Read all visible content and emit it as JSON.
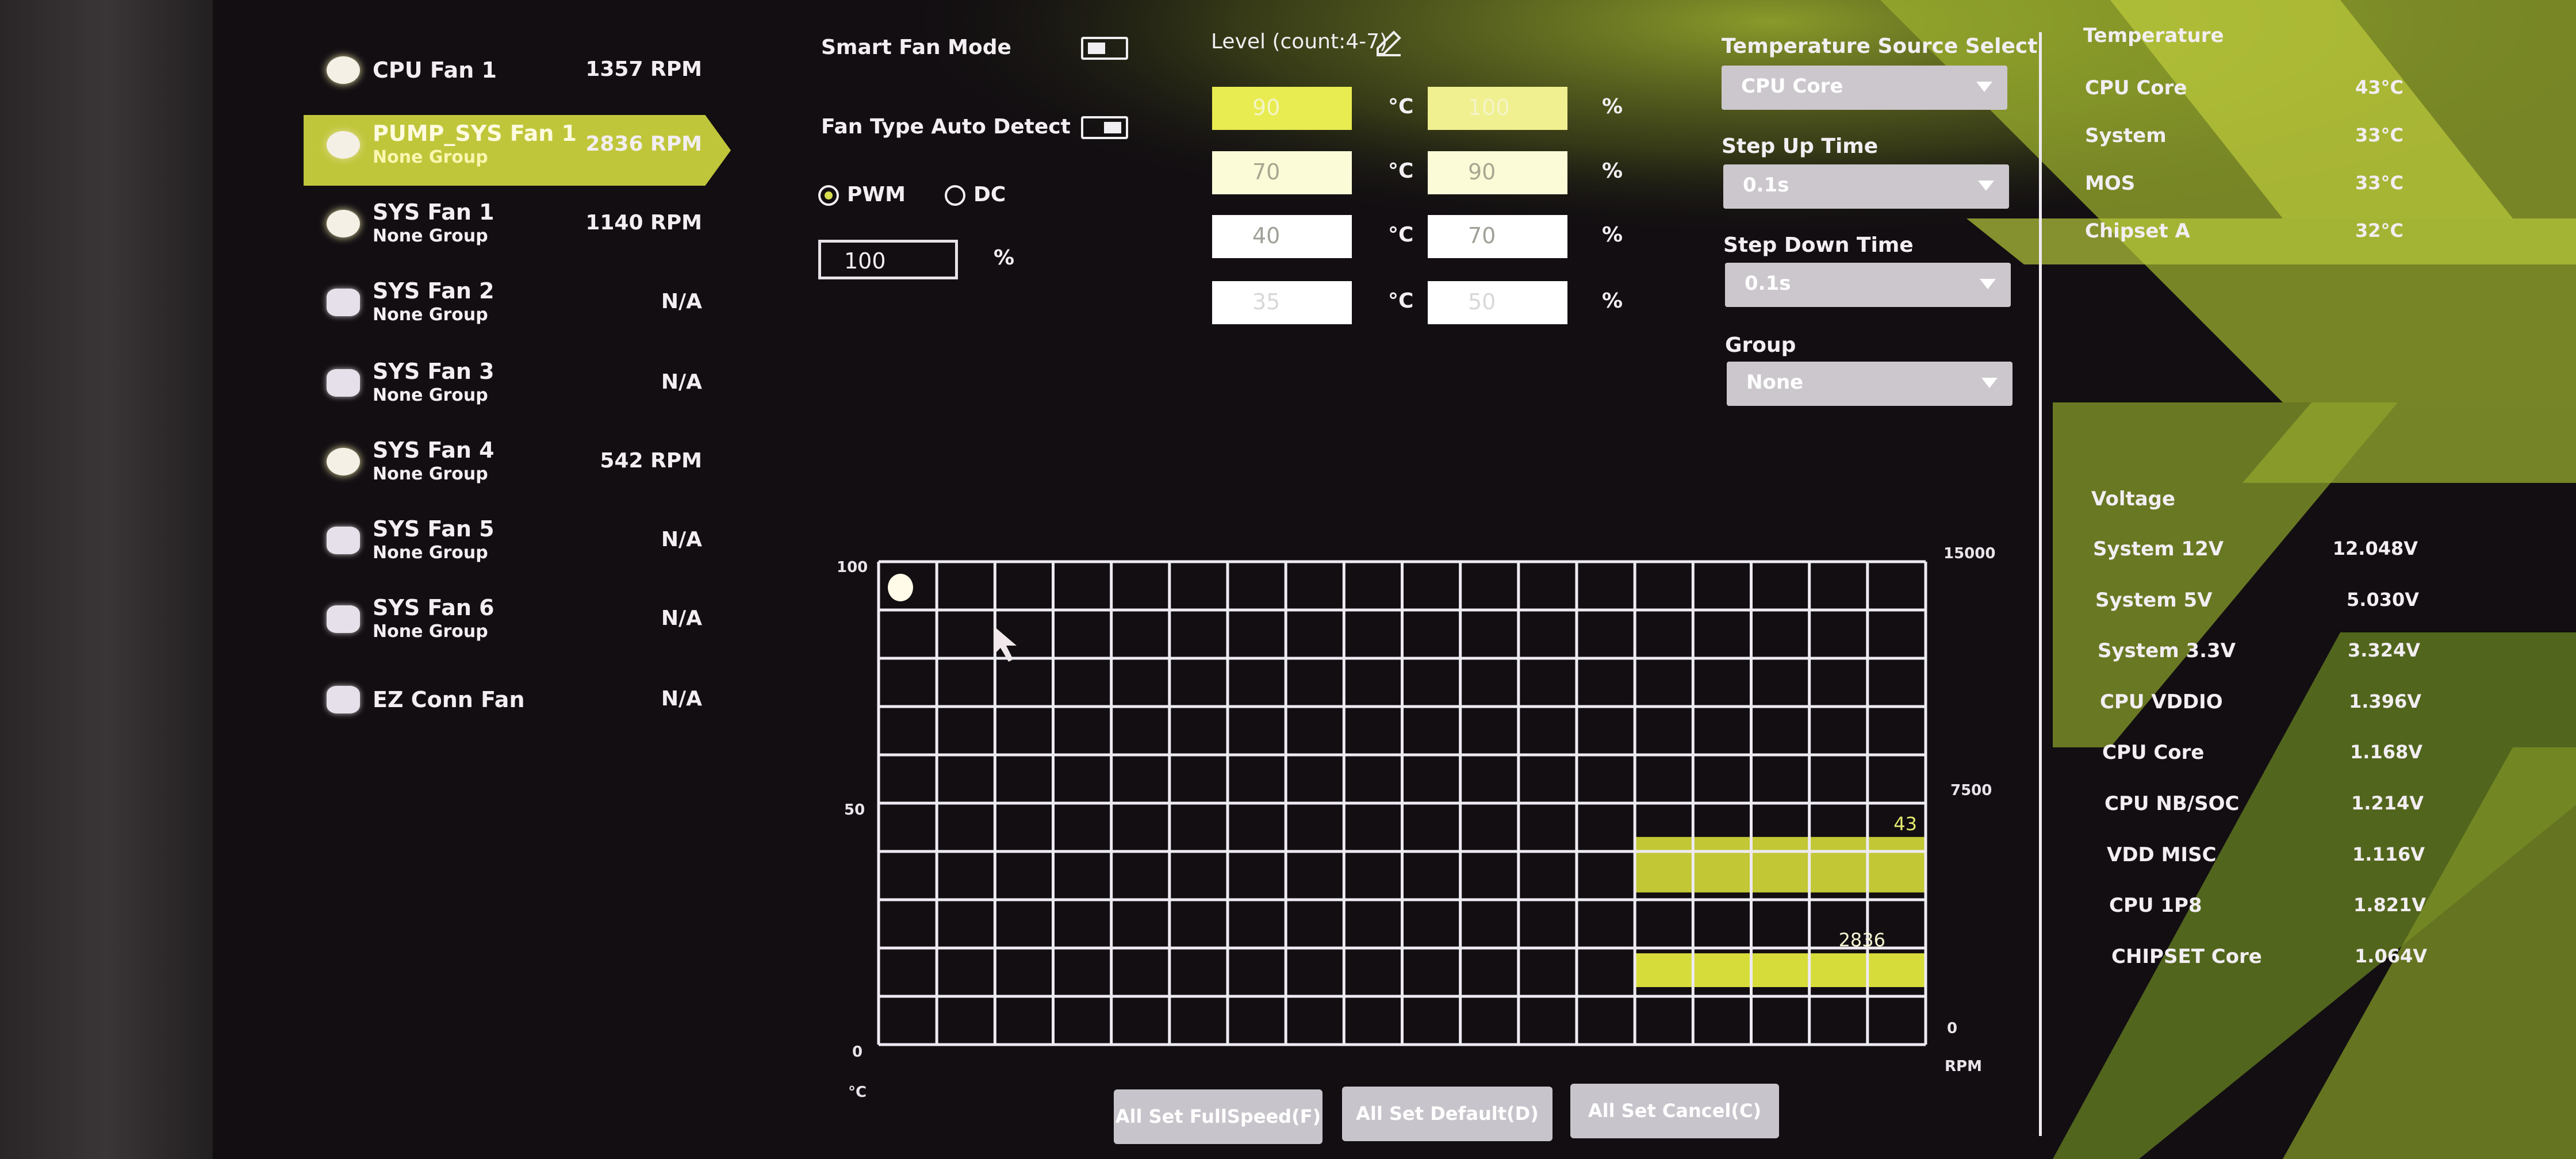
{
  "fans": [
    {
      "name": "CPU Fan 1",
      "group": "",
      "rpm": "1357 RPM",
      "active": true,
      "selected": false
    },
    {
      "name": "PUMP_SYS Fan 1",
      "group": "None Group",
      "rpm": "2836 RPM",
      "active": true,
      "selected": true
    },
    {
      "name": "SYS Fan 1",
      "group": "None Group",
      "rpm": "1140 RPM",
      "active": true,
      "selected": false
    },
    {
      "name": "SYS Fan 2",
      "group": "None Group",
      "rpm": "N/A",
      "active": false,
      "selected": false
    },
    {
      "name": "SYS Fan 3",
      "group": "None Group",
      "rpm": "N/A",
      "active": false,
      "selected": false
    },
    {
      "name": "SYS Fan 4",
      "group": "None Group",
      "rpm": "542 RPM",
      "active": true,
      "selected": false
    },
    {
      "name": "SYS Fan 5",
      "group": "None Group",
      "rpm": "N/A",
      "active": false,
      "selected": false
    },
    {
      "name": "SYS Fan 6",
      "group": "None Group",
      "rpm": "N/A",
      "active": false,
      "selected": false
    },
    {
      "name": "EZ Conn Fan",
      "group": "",
      "rpm": "N/A",
      "active": false,
      "selected": false
    }
  ],
  "controls": {
    "smart_fan_mode_label": "Smart Fan Mode",
    "smart_fan_mode_on": false,
    "fan_type_auto_detect_label": "Fan Type Auto Detect",
    "fan_type_auto_detect_on": true,
    "pwm_label": "PWM",
    "dc_label": "DC",
    "mode_selected": "PWM",
    "speed_value": "100",
    "speed_unit": "%"
  },
  "levels": {
    "title": "Level (count:4-7)",
    "temp_unit": "°C",
    "speed_unit": "%",
    "rows": [
      {
        "temp": "90",
        "speed": "100"
      },
      {
        "temp": "70",
        "speed": "90"
      },
      {
        "temp": "40",
        "speed": "70"
      },
      {
        "temp": "35",
        "speed": "50"
      }
    ]
  },
  "settings": {
    "temp_source_label": "Temperature Source Select",
    "temp_source_value": "CPU Core",
    "step_up_label": "Step Up Time",
    "step_up_value": "0.1s",
    "step_down_label": "Step Down Time",
    "step_down_value": "0.1s",
    "group_label": "Group",
    "group_value": "None"
  },
  "temperature": {
    "title": "Temperature",
    "items": [
      {
        "label": "CPU Core",
        "value": "43°C"
      },
      {
        "label": "System",
        "value": "33°C"
      },
      {
        "label": "MOS",
        "value": "33°C"
      },
      {
        "label": "Chipset A",
        "value": "32°C"
      }
    ]
  },
  "voltage": {
    "title": "Voltage",
    "items": [
      {
        "label": "System 12V",
        "value": "12.048V"
      },
      {
        "label": "System 5V",
        "value": "5.030V"
      },
      {
        "label": "System 3.3V",
        "value": "3.324V"
      },
      {
        "label": "CPU VDDIO",
        "value": "1.396V"
      },
      {
        "label": "CPU Core",
        "value": "1.168V"
      },
      {
        "label": "CPU NB/SOC",
        "value": "1.214V"
      },
      {
        "label": "VDD MISC",
        "value": "1.116V"
      },
      {
        "label": "CPU 1P8",
        "value": "1.821V"
      },
      {
        "label": "CHIPSET Core",
        "value": "1.064V"
      }
    ]
  },
  "chart_data": {
    "type": "bar",
    "left_axis": {
      "unit": "°C",
      "ticks": [
        "100",
        "50",
        "0"
      ],
      "range": [
        0,
        100
      ]
    },
    "right_axis": {
      "unit": "RPM",
      "ticks": [
        "15000",
        "7500",
        "0"
      ],
      "range": [
        0,
        15000
      ]
    },
    "grid": {
      "on": true,
      "columns": 18,
      "rows": 10
    },
    "current_temperature": {
      "value": 43,
      "label": "43"
    },
    "current_rpm": {
      "value": 2836,
      "label": "2836"
    },
    "accent": "#d6dc3a"
  },
  "buttons": {
    "full_speed": "All Set FullSpeed(F)",
    "default": "All Set Default(D)",
    "cancel": "All Set Cancel(C)"
  },
  "colors": {
    "accent": "#c0c63a",
    "highlight": "#e8ec50",
    "background": "#120e12"
  }
}
